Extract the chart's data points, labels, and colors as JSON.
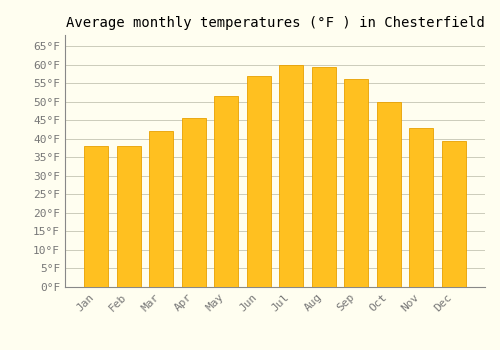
{
  "title": "Average monthly temperatures (°F ) in Chesterfield",
  "months": [
    "Jan",
    "Feb",
    "Mar",
    "Apr",
    "May",
    "Jun",
    "Jul",
    "Aug",
    "Sep",
    "Oct",
    "Nov",
    "Dec"
  ],
  "values": [
    38,
    38,
    42,
    45.5,
    51.5,
    57,
    60,
    59.5,
    56,
    50,
    43,
    39.5
  ],
  "bar_color": "#FFC020",
  "bar_edge_color": "#E8A000",
  "bar_gradient_bottom": "#FFB000",
  "background_color": "#FFFEF0",
  "grid_color": "#CCCCBB",
  "yticks": [
    0,
    5,
    10,
    15,
    20,
    25,
    30,
    35,
    40,
    45,
    50,
    55,
    60,
    65
  ],
  "ylim": [
    0,
    68
  ],
  "title_fontsize": 10,
  "tick_fontsize": 8,
  "font_family": "monospace"
}
